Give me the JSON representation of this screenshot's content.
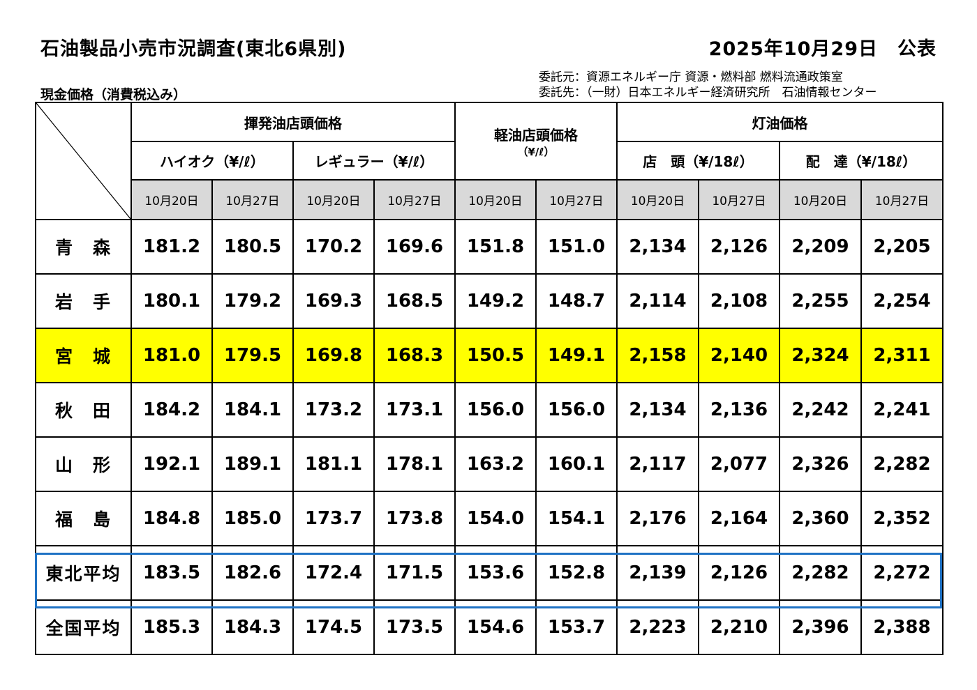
{
  "title": "石油製品小売市況調査(東北6県別)",
  "published": "2025年10月29日　公表",
  "credits": {
    "commissioner": "委託元：資源エネルギー庁 資源・燃料部 燃料流通政策室",
    "contractor": "委託先：（一財）日本エネルギー経済研究所　石油情報センター"
  },
  "subtitle": "現金価格（消費税込み）",
  "headers": {
    "gasoline": "揮発油店頭価格",
    "diesel": "軽油店頭価格",
    "diesel_unit": "（¥/ℓ）",
    "kerosene": "灯油価格",
    "high_octane": "ハイオク（¥/ℓ）",
    "regular": "レギュラー（¥/ℓ）",
    "kerosene_store": "店　頭（¥/18ℓ）",
    "kerosene_delivery": "配　達（¥/18ℓ）",
    "dates": [
      "10月20日",
      "10月27日",
      "10月20日",
      "10月27日",
      "10月20日",
      "10月27日",
      "10月20日",
      "10月27日",
      "10月20日",
      "10月27日"
    ]
  },
  "rows": [
    {
      "name": "青　森",
      "values": [
        "181.2",
        "180.5",
        "170.2",
        "169.6",
        "151.8",
        "151.0",
        "2,134",
        "2,126",
        "2,209",
        "2,205"
      ]
    },
    {
      "name": "岩　手",
      "values": [
        "180.1",
        "179.2",
        "169.3",
        "168.5",
        "149.2",
        "148.7",
        "2,114",
        "2,108",
        "2,255",
        "2,254"
      ]
    },
    {
      "name": "宮　城",
      "values": [
        "181.0",
        "179.5",
        "169.8",
        "168.3",
        "150.5",
        "149.1",
        "2,158",
        "2,140",
        "2,324",
        "2,311"
      ]
    },
    {
      "name": "秋　田",
      "values": [
        "184.2",
        "184.1",
        "173.2",
        "173.1",
        "156.0",
        "156.0",
        "2,134",
        "2,136",
        "2,242",
        "2,241"
      ]
    },
    {
      "name": "山　形",
      "values": [
        "192.1",
        "189.1",
        "181.1",
        "178.1",
        "163.2",
        "160.1",
        "2,117",
        "2,077",
        "2,326",
        "2,282"
      ]
    },
    {
      "name": "福　島",
      "values": [
        "184.8",
        "185.0",
        "173.7",
        "173.8",
        "154.0",
        "154.1",
        "2,176",
        "2,164",
        "2,360",
        "2,352"
      ]
    },
    {
      "name": "東北平均",
      "values": [
        "183.5",
        "182.6",
        "172.4",
        "171.5",
        "153.6",
        "152.8",
        "2,139",
        "2,126",
        "2,282",
        "2,272"
      ]
    },
    {
      "name": "全国平均",
      "values": [
        "185.3",
        "184.3",
        "174.5",
        "173.5",
        "154.6",
        "153.7",
        "2,223",
        "2,210",
        "2,396",
        "2,388"
      ]
    }
  ],
  "colors": {
    "highlight": "#ffff00",
    "average_frame": "#1f72c4",
    "date_header_bg": "#d9d9d9"
  }
}
